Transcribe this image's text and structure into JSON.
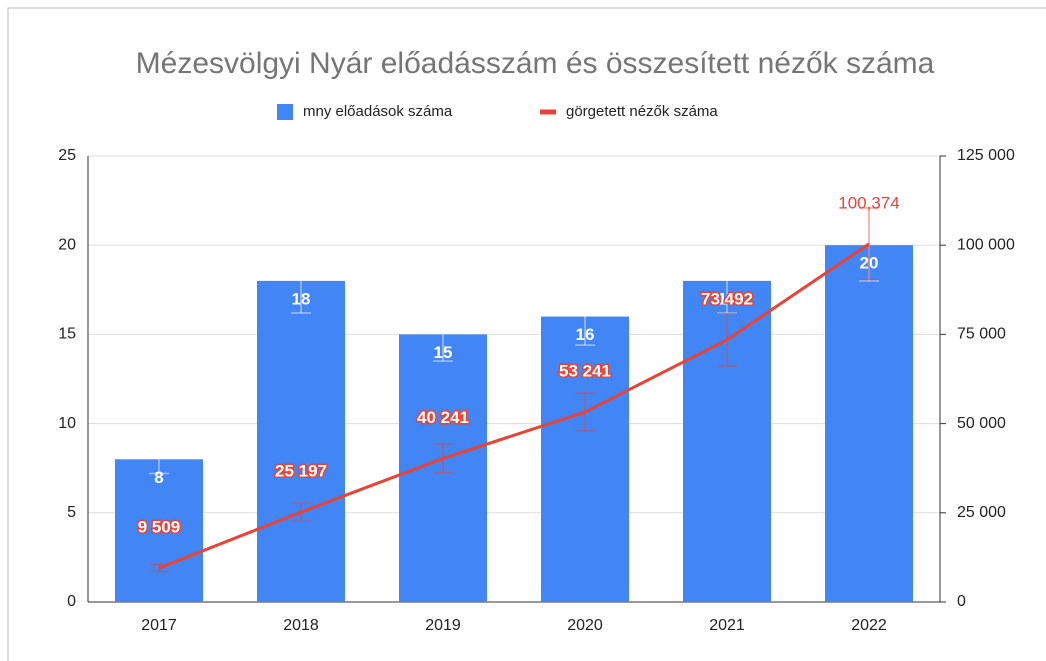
{
  "chart_data": {
    "type": "combo",
    "title": "Mézesvölgyi Nyár előadásszám és összesített nézők száma",
    "categories": [
      "2017",
      "2018",
      "2019",
      "2020",
      "2021",
      "2022"
    ],
    "series": [
      {
        "name": "mny előadások száma",
        "type": "bar",
        "color": "#4285f4",
        "axis": "y",
        "values": [
          8,
          18,
          15,
          16,
          18,
          20
        ],
        "errors": [
          0.8,
          1.8,
          1.5,
          1.6,
          1.8,
          2
        ]
      },
      {
        "name": "görgetett nézők száma",
        "type": "line",
        "color": "#ea4335",
        "axis": "y2",
        "values": [
          9509,
          25197,
          40241,
          53241,
          73492,
          100374
        ],
        "value_labels": [
          "9 509",
          "25 197",
          "40 241",
          "53 241",
          "73 492",
          "100,374"
        ],
        "errors": [
          951,
          2520,
          4024,
          5324,
          7349,
          10037
        ]
      }
    ],
    "ylim": [
      0,
      25
    ],
    "yticks": [
      0,
      5,
      10,
      15,
      20,
      25
    ],
    "y2lim": [
      0,
      125000
    ],
    "y2ticks": [
      0,
      {
        "value": 25000,
        "label": "25 000"
      },
      {
        "value": 50000,
        "label": "50 000"
      },
      {
        "value": 75000,
        "label": "75 000"
      },
      {
        "value": 100000,
        "label": "100 000"
      },
      {
        "value": 125000,
        "label": "125 000"
      }
    ],
    "grid": true,
    "legend": "top"
  }
}
